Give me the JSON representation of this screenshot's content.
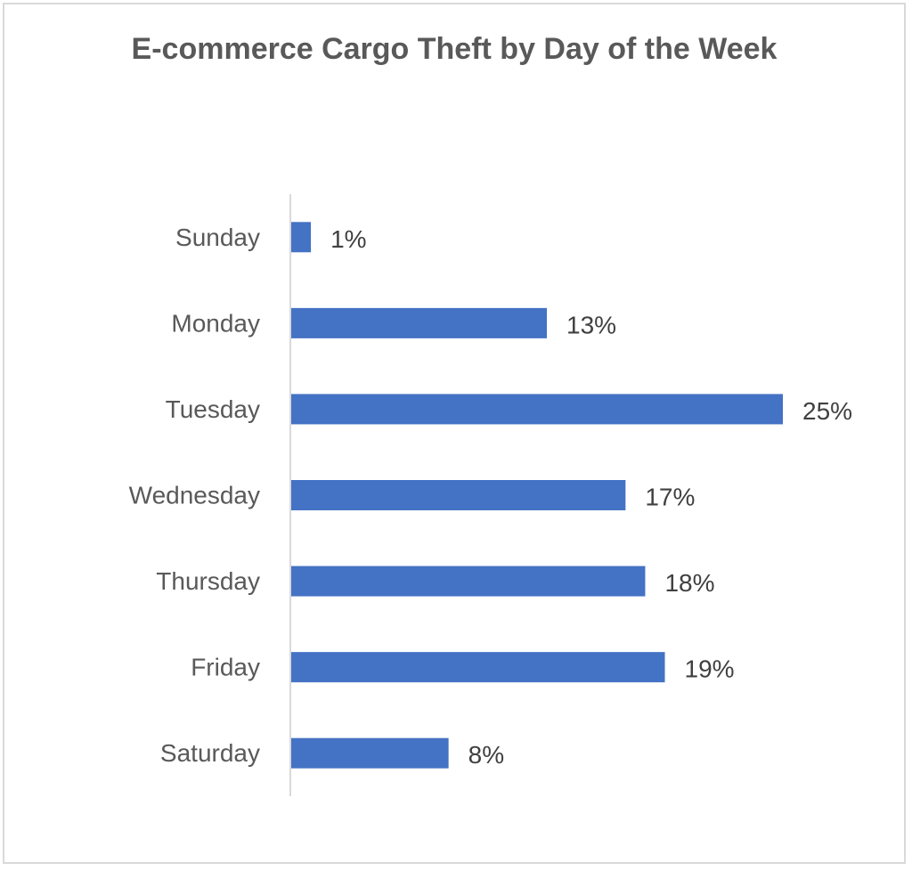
{
  "chart_data": {
    "type": "bar",
    "orientation": "horizontal",
    "title": "E-commerce Cargo Theft by Day of the Week",
    "categories": [
      "Sunday",
      "Monday",
      "Tuesday",
      "Wednesday",
      "Thursday",
      "Friday",
      "Saturday"
    ],
    "values": [
      1,
      13,
      25,
      17,
      18,
      19,
      8
    ],
    "data_labels": [
      "1%",
      "13%",
      "25%",
      "17%",
      "18%",
      "19%",
      "8%"
    ],
    "value_unit": "%",
    "xlim": [
      0,
      25
    ],
    "grid": false,
    "legend": "none",
    "bar_color": "#4472c4"
  }
}
